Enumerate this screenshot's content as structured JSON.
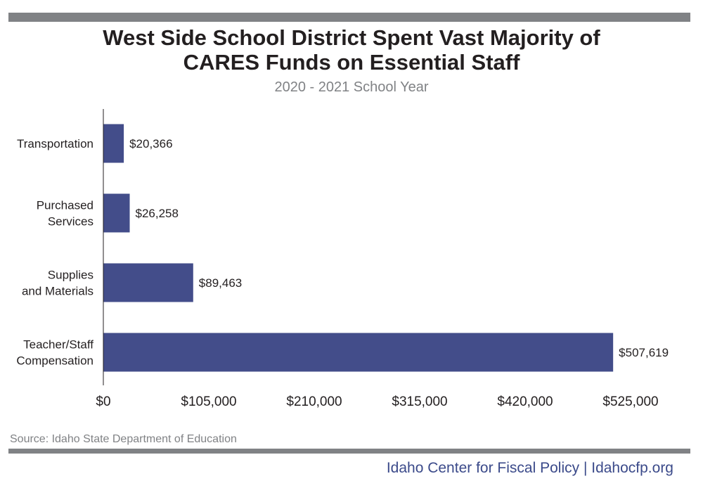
{
  "header": {
    "title_line1": "West Side School District Spent Vast Majority of",
    "title_line2": "CARES Funds on Essential Staff",
    "subtitle": "2020 - 2021 School Year"
  },
  "footer": {
    "source": "Source: Idaho State Department of Education",
    "credit": "Idaho Center for Fiscal Policy | Idahocfp.org"
  },
  "colors": {
    "bar": "#434d8a",
    "rule": "#808285",
    "axis": "#231f20",
    "credit": "#3b4a8a"
  },
  "chart_data": {
    "type": "bar",
    "orientation": "horizontal",
    "title": "West Side School District Spent Vast Majority of CARES Funds on Essential Staff",
    "subtitle": "2020 - 2021 School Year",
    "categories": [
      [
        "Transportation"
      ],
      [
        "Purchased",
        "Services"
      ],
      [
        "Supplies",
        "and Materials"
      ],
      [
        "Teacher/Staff",
        "Compensation"
      ]
    ],
    "values": [
      20366,
      26258,
      89463,
      507619
    ],
    "value_labels": [
      "$20,366",
      "$26,258",
      "$89,463",
      "$507,619"
    ],
    "xlim": [
      0,
      525000
    ],
    "x_ticks": [
      0,
      105000,
      210000,
      315000,
      420000,
      525000
    ],
    "x_tick_labels": [
      "$0",
      "$105,000",
      "$210,000",
      "$315,000",
      "$420,000",
      "$525,000"
    ],
    "grid": false,
    "legend": "none"
  }
}
